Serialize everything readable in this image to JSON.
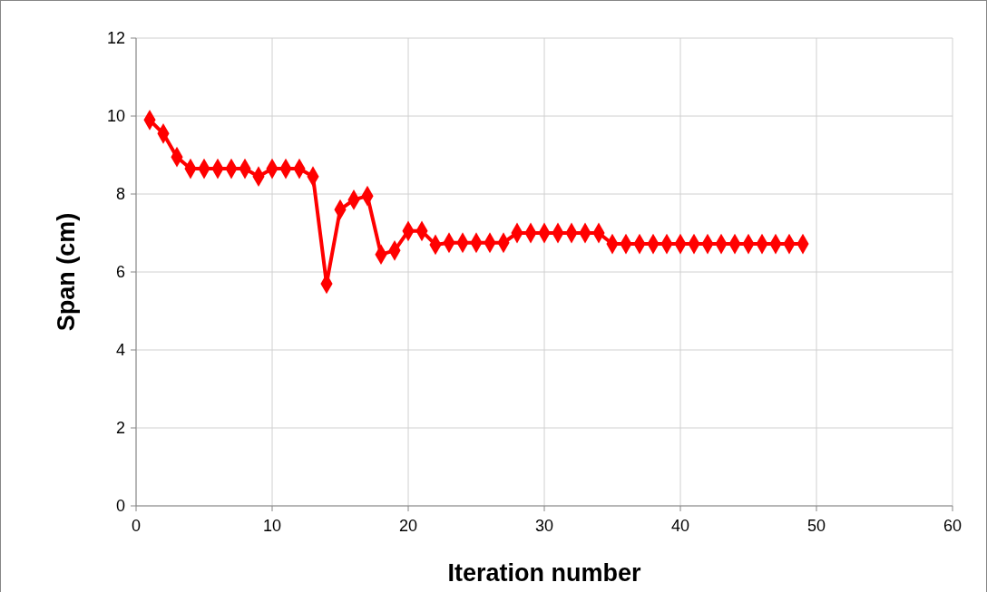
{
  "chart_data": {
    "type": "line",
    "xlabel": "Iteration number",
    "ylabel": "Span (cm)",
    "xlim": [
      0,
      60
    ],
    "xticks": [
      0,
      10,
      20,
      30,
      40,
      50,
      60
    ],
    "ylim": [
      0,
      12
    ],
    "yticks": [
      0,
      2,
      4,
      6,
      8,
      10,
      12
    ],
    "grid": true,
    "marker": "diamond",
    "line_style": "solid",
    "series": [
      {
        "color": "#ff0000",
        "x": [
          1,
          2,
          3,
          4,
          5,
          6,
          7,
          8,
          9,
          10,
          11,
          12,
          13,
          14,
          15,
          16,
          17,
          18,
          19,
          20,
          21,
          22,
          23,
          24,
          25,
          26,
          27,
          28,
          29,
          30,
          31,
          32,
          33,
          34,
          35,
          36,
          37,
          38,
          39,
          40,
          41,
          42,
          43,
          44,
          45,
          46,
          47,
          48,
          49
        ],
        "values": [
          9.9,
          9.55,
          8.95,
          8.65,
          8.65,
          8.65,
          8.65,
          8.65,
          8.45,
          8.65,
          8.65,
          8.65,
          8.45,
          5.7,
          7.6,
          7.85,
          7.95,
          6.45,
          6.55,
          7.05,
          7.05,
          6.7,
          6.75,
          6.75,
          6.75,
          6.75,
          6.75,
          7.0,
          7.0,
          7.0,
          7.0,
          7.0,
          7.0,
          7.0,
          6.72,
          6.72,
          6.72,
          6.72,
          6.72,
          6.72,
          6.72,
          6.72,
          6.72,
          6.72,
          6.72,
          6.72,
          6.72,
          6.72,
          6.72
        ]
      }
    ]
  }
}
